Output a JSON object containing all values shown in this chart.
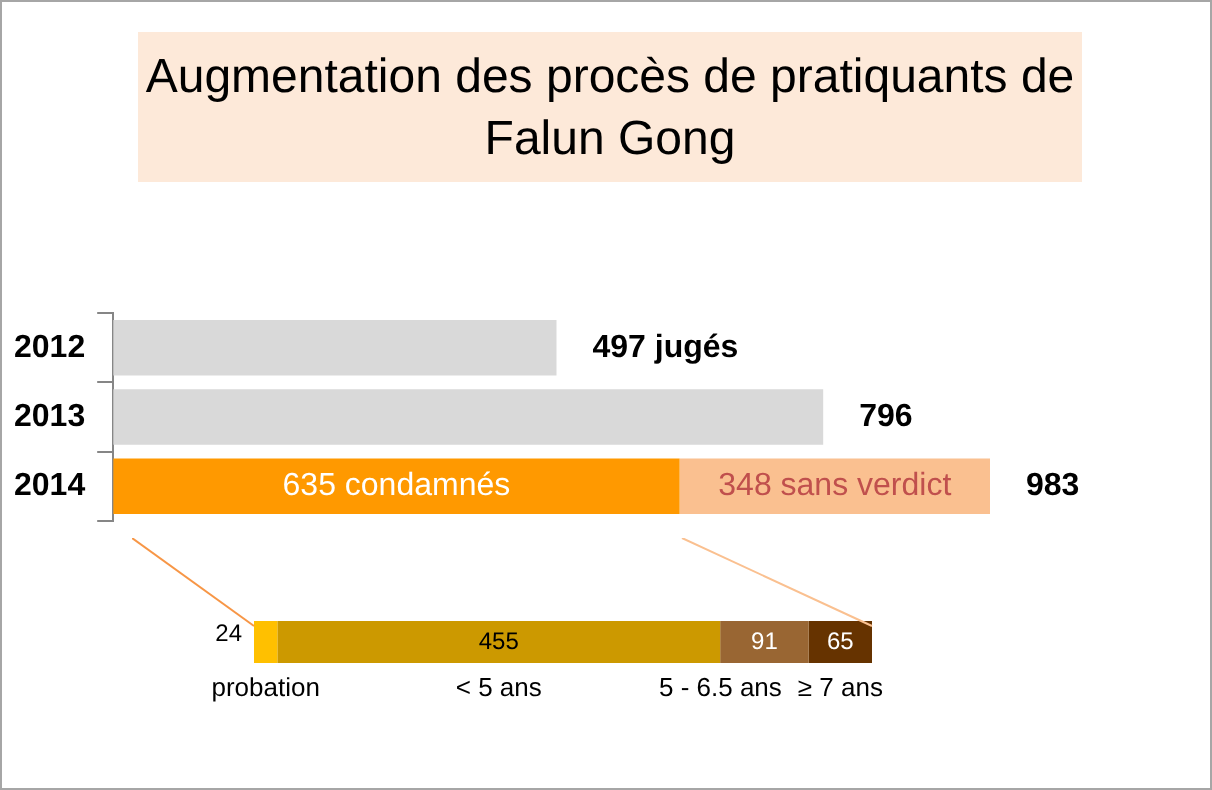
{
  "chart_data": [
    {
      "type": "bar",
      "orientation": "horizontal",
      "stacked": true,
      "title": "Augmentation des procès de pratiquants de Falun Gong",
      "categories": [
        "2012",
        "2013",
        "2014"
      ],
      "tick_labels": "y",
      "series": [
        {
          "colors": [
            "#d9d9d9",
            "#d9d9d9",
            "#ff9900"
          ],
          "values": [
            497,
            796,
            635
          ],
          "value_labels": [
            null,
            null,
            "635 condamnés"
          ]
        },
        {
          "color": "#fac090",
          "values": [
            null,
            null,
            348
          ],
          "value_labels": [
            null,
            null,
            "348 sans verdict"
          ]
        }
      ],
      "totals": [
        "497 jugés",
        "796",
        "983"
      ]
    },
    {
      "type": "bar",
      "orientation": "horizontal",
      "stacked": true,
      "categories": [
        null
      ],
      "tick_labels": false,
      "data_labels": true,
      "series": [
        {
          "name": "probation",
          "color": "#ffc000",
          "values": [
            24
          ]
        },
        {
          "name": "< 5 ans",
          "color": "#cc9900",
          "values": [
            455
          ]
        },
        {
          "name": "5 - 6.5 ans",
          "color": "#996633",
          "values": [
            91
          ]
        },
        {
          "name": "≥ 7 ans",
          "color": "#663300",
          "values": [
            65
          ]
        }
      ]
    }
  ]
}
